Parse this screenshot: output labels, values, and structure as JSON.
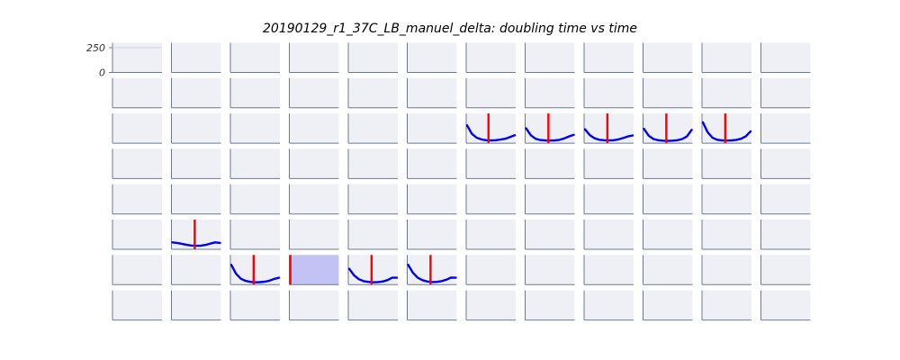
{
  "chart_data": {
    "type": "line",
    "title": "20190129_r1_37C_LB_manuel_delta: doubling time vs time",
    "layout": "grid of small multiples, 8 rows x 12 columns, shared axes",
    "rows": 8,
    "cols": 12,
    "ylim": [
      0,
      300
    ],
    "y_ticks": [
      "250",
      "0"
    ],
    "panel_background": "#eff0f5",
    "axis_color": "#6b7b8f",
    "curve_color": "#0000ee",
    "marker_color": "#ff0000",
    "highlight_fill": "#c2c2f5",
    "reference_line": {
      "row": 0,
      "col": 0,
      "y": 250
    },
    "curve_panels": [
      {
        "row": 2,
        "col": 6,
        "shape": "u",
        "values": [
          180,
          95,
          55,
          38,
          30,
          28,
          30,
          36,
          45,
          62,
          80
        ],
        "marker_x": 0.45
      },
      {
        "row": 2,
        "col": 7,
        "shape": "u",
        "values": [
          150,
          80,
          45,
          32,
          28,
          26,
          28,
          34,
          48,
          68,
          85
        ],
        "marker_x": 0.47
      },
      {
        "row": 2,
        "col": 8,
        "shape": "u",
        "values": [
          140,
          82,
          50,
          35,
          30,
          28,
          30,
          38,
          52,
          68,
          78
        ],
        "marker_x": 0.47
      },
      {
        "row": 2,
        "col": 9,
        "shape": "u",
        "values": [
          145,
          75,
          42,
          30,
          25,
          24,
          25,
          30,
          42,
          68,
          135
        ],
        "marker_x": 0.47
      },
      {
        "row": 2,
        "col": 10,
        "shape": "u",
        "values": [
          210,
          110,
          55,
          35,
          28,
          26,
          28,
          34,
          45,
          70,
          120
        ],
        "marker_x": 0.47
      },
      {
        "row": 5,
        "col": 1,
        "shape": "bump",
        "values": [
          70,
          65,
          55,
          45,
          38,
          35,
          37,
          45,
          58,
          70,
          65
        ],
        "marker_x": 0.47
      },
      {
        "row": 6,
        "col": 2,
        "shape": "u",
        "values": [
          200,
          110,
          60,
          38,
          28,
          24,
          25,
          30,
          40,
          58,
          70
        ],
        "marker_x": 0.47
      },
      {
        "row": 6,
        "col": 4,
        "shape": "u",
        "values": [
          160,
          95,
          55,
          35,
          28,
          24,
          26,
          32,
          45,
          70,
          70
        ],
        "marker_x": 0.47
      },
      {
        "row": 6,
        "col": 5,
        "shape": "u",
        "values": [
          200,
          120,
          70,
          45,
          32,
          26,
          28,
          35,
          50,
          72,
          70
        ],
        "marker_x": 0.47
      }
    ],
    "highlight_panels": [
      {
        "row": 6,
        "col": 3,
        "marker_x": 0.02
      }
    ]
  }
}
